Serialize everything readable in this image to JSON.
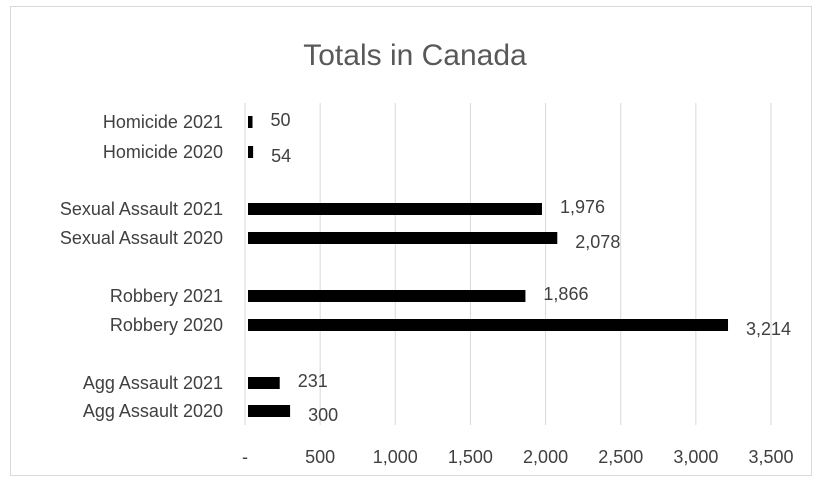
{
  "chart_data": {
    "type": "bar",
    "orientation": "horizontal",
    "title": "Totals in Canada",
    "xlabel": "",
    "ylabel": "",
    "xlim": [
      0,
      3500
    ],
    "x_ticks": [
      "-",
      "500",
      "1,000",
      "1,500",
      "2,000",
      "2,500",
      "3,000",
      "3,500"
    ],
    "grid": true,
    "legend": "none",
    "bar_color": "#000000",
    "categories": [
      "Homicide 2021",
      "Homicide 2020",
      "Sexual Assault 2021",
      "Sexual Assault 2020",
      "Robbery 2021",
      "Robbery 2020",
      "Agg Assault 2021",
      "Agg Assault 2020"
    ],
    "values": [
      50,
      54,
      1976,
      2078,
      1866,
      3214,
      231,
      300
    ],
    "data_labels": [
      "50",
      "54",
      "1,976",
      "2,078",
      "1,866",
      "3,214",
      "231",
      "300"
    ]
  }
}
